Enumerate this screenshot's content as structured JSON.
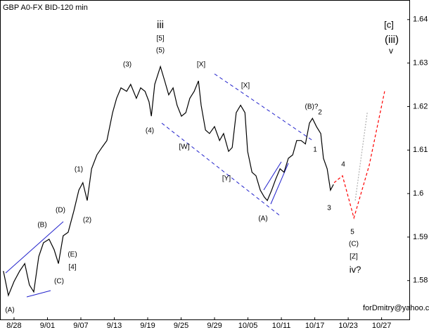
{
  "chart_data": {
    "type": "line",
    "title": "GBP A0-FX BID-120 min",
    "footer": "forDmitry@yahoo.com",
    "xlim": [
      -0.42,
      11.85
    ],
    "xticks": [
      {
        "value": 0,
        "label": "8/28"
      },
      {
        "value": 1,
        "label": "9/01"
      },
      {
        "value": 2,
        "label": "9/07"
      },
      {
        "value": 3,
        "label": "9/13"
      },
      {
        "value": 4,
        "label": "9/19"
      },
      {
        "value": 5,
        "label": "9/25"
      },
      {
        "value": 6,
        "label": "9/29"
      },
      {
        "value": 7,
        "label": "10/05"
      },
      {
        "value": 8,
        "label": "10/11"
      },
      {
        "value": 9,
        "label": "10/17"
      },
      {
        "value": 10,
        "label": "10/23"
      },
      {
        "value": 11,
        "label": "10/27"
      }
    ],
    "ylim": [
      1.5709,
      1.6445
    ],
    "yticks": [
      1.58,
      1.59,
      1.6,
      1.61,
      1.62,
      1.63,
      1.64
    ],
    "series": [
      {
        "color": "#000000",
        "style": "solid",
        "x": [
          -0.32,
          -0.17,
          0,
          0.17,
          0.32,
          0.46,
          0.59,
          0.74,
          0.88,
          1.05,
          1.2,
          1.33,
          1.47,
          1.62,
          1.79,
          1.94,
          2.06,
          2.19,
          2.32,
          2.48,
          2.63,
          2.78,
          2.95,
          3.07,
          3.2,
          3.37,
          3.49,
          3.66,
          3.79,
          3.92,
          4.04,
          4.11,
          4.21,
          4.38,
          4.51,
          4.63,
          4.76,
          4.88,
          5.01,
          5.14,
          5.26,
          5.39,
          5.52,
          5.6,
          5.73,
          5.85,
          6,
          6.15,
          6.27,
          6.42,
          6.53,
          6.65,
          6.78,
          6.91,
          6.99,
          7.12,
          7.24,
          7.37,
          7.49,
          7.58,
          7.71,
          7.83,
          7.96,
          8.08,
          8.21,
          8.34,
          8.46,
          8.59,
          8.72,
          8.84,
          8.93,
          9.05,
          9.18,
          9.26,
          9.37,
          9.47,
          9.56
        ],
        "values": [
          1.5822,
          1.5766,
          1.5798,
          1.5822,
          1.5839,
          1.579,
          1.5774,
          1.5855,
          1.5887,
          1.5895,
          1.5871,
          1.5839,
          1.5903,
          1.5911,
          1.596,
          1.6008,
          1.6025,
          1.5984,
          1.6057,
          1.6089,
          1.6106,
          1.6122,
          1.6186,
          1.6219,
          1.6243,
          1.6235,
          1.6251,
          1.6219,
          1.6243,
          1.6235,
          1.6211,
          1.6178,
          1.6251,
          1.6292,
          1.6259,
          1.6227,
          1.6243,
          1.6203,
          1.6178,
          1.6186,
          1.6219,
          1.6235,
          1.6259,
          1.6203,
          1.6146,
          1.6138,
          1.6154,
          1.6122,
          1.6138,
          1.6097,
          1.6106,
          1.6186,
          1.6203,
          1.6186,
          1.6097,
          1.6049,
          1.6041,
          1.6008,
          1.5992,
          1.5984,
          1.6008,
          1.6033,
          1.6057,
          1.6049,
          1.6081,
          1.6089,
          1.6122,
          1.6122,
          1.6114,
          1.6162,
          1.6173,
          1.6154,
          1.6138,
          1.6081,
          1.6057,
          1.6008,
          1.6021
        ]
      },
      {
        "color": "#ff0000",
        "style": "dashed",
        "x": [
          9.58,
          9.83,
          10.17,
          10.63,
          11.09
        ],
        "values": [
          1.6025,
          1.6041,
          1.5944,
          1.6065,
          1.6235
        ]
      },
      {
        "color": "#b0b0b0",
        "style": "dotted",
        "x": [
          10.21,
          10.57
        ],
        "values": [
          1.5984,
          1.6186
        ]
      }
    ],
    "annotations": [
      {
        "text": "(A)",
        "color": "#1a1a66"
      },
      {
        "text": "(B)",
        "color": "#1a1a66"
      },
      {
        "text": "(C)",
        "color": "#1a1a66"
      },
      {
        "text": "(D)",
        "color": "#1a1a66"
      },
      {
        "text": "(E)",
        "color": "#1a1a66"
      },
      {
        "text": "[4]",
        "color": "#007700"
      },
      {
        "text": "(1)",
        "color": "#1a1a66"
      },
      {
        "text": "(2)",
        "color": "#1a1a66"
      },
      {
        "text": "(3)",
        "color": "#1a1a66"
      },
      {
        "text": "(4)",
        "color": "#1a1a66"
      },
      {
        "text": "(5)",
        "color": "#1a1a66"
      },
      {
        "text": "[5]",
        "color": "#007700"
      },
      {
        "text": "iii",
        "color": "#990000"
      },
      {
        "text": "[W]",
        "color": "#007700"
      },
      {
        "text": "[X]",
        "color": "#007700"
      },
      {
        "text": "[X]",
        "color": "#007700"
      },
      {
        "text": "[Y]",
        "color": "#007700"
      },
      {
        "text": "(A)",
        "color": "#1a1a66"
      },
      {
        "text": "(B)?",
        "color": "#1a1a66"
      },
      {
        "text": "1",
        "color": "#990000"
      },
      {
        "text": "2",
        "color": "#990000"
      },
      {
        "text": "3",
        "color": "#990000"
      },
      {
        "text": "4",
        "color": "#990000"
      },
      {
        "text": "5",
        "color": "#990000"
      },
      {
        "text": "(C)",
        "color": "#1a1a66"
      },
      {
        "text": "[Z]",
        "color": "#007700"
      },
      {
        "text": "iv?",
        "color": "#990000"
      },
      {
        "text": "[c]",
        "color": "#007700"
      },
      {
        "text": "(iii)",
        "color": "#1a1a66"
      },
      {
        "text": "v",
        "color": "#990000"
      }
    ]
  }
}
